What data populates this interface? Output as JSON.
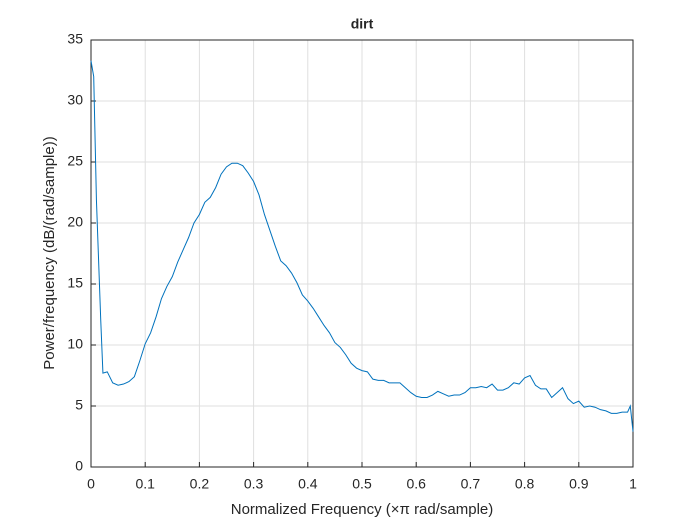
{
  "chart_data": {
    "type": "line",
    "title": "dirt",
    "x_label": "Normalized Frequency  (×π rad/sample)",
    "y_label": "Power/frequency (dB/(rad/sample))",
    "x": [
      0,
      0.005,
      0.01,
      0.018,
      0.022,
      0.03,
      0.04,
      0.05,
      0.06,
      0.07,
      0.08,
      0.09,
      0.1,
      0.11,
      0.12,
      0.13,
      0.14,
      0.15,
      0.16,
      0.17,
      0.18,
      0.19,
      0.2,
      0.21,
      0.22,
      0.23,
      0.24,
      0.25,
      0.26,
      0.27,
      0.28,
      0.29,
      0.3,
      0.31,
      0.32,
      0.33,
      0.34,
      0.35,
      0.36,
      0.37,
      0.38,
      0.39,
      0.4,
      0.41,
      0.42,
      0.43,
      0.44,
      0.45,
      0.46,
      0.47,
      0.48,
      0.49,
      0.5,
      0.51,
      0.52,
      0.53,
      0.54,
      0.55,
      0.56,
      0.57,
      0.58,
      0.59,
      0.6,
      0.61,
      0.62,
      0.63,
      0.64,
      0.65,
      0.66,
      0.67,
      0.68,
      0.69,
      0.7,
      0.71,
      0.72,
      0.73,
      0.74,
      0.75,
      0.76,
      0.77,
      0.78,
      0.79,
      0.8,
      0.81,
      0.82,
      0.83,
      0.84,
      0.85,
      0.86,
      0.87,
      0.88,
      0.89,
      0.9,
      0.91,
      0.92,
      0.93,
      0.94,
      0.95,
      0.96,
      0.97,
      0.98,
      0.99,
      0.995,
      1
    ],
    "values": [
      33.3,
      32,
      21.9,
      12,
      7.7,
      7.8,
      6.9,
      6.7,
      6.8,
      7.0,
      7.4,
      8.7,
      10.1,
      11,
      12.3,
      13.8,
      14.8,
      15.6,
      16.8,
      17.8,
      18.8,
      20,
      20.7,
      21.7,
      22.1,
      22.9,
      24,
      24.6,
      24.9,
      24.9,
      24.7,
      24.1,
      23.4,
      22.3,
      20.7,
      19.4,
      18.1,
      16.9,
      16.5,
      15.9,
      15.1,
      14.1,
      13.6,
      13,
      12.3,
      11.6,
      11,
      10.2,
      9.8,
      9.2,
      8.5,
      8.1,
      7.9,
      7.8,
      7.2,
      7.1,
      7.1,
      6.9,
      6.9,
      6.9,
      6.5,
      6.1,
      5.8,
      5.7,
      5.7,
      5.9,
      6.2,
      6.0,
      5.8,
      5.9,
      5.9,
      6.1,
      6.5,
      6.5,
      6.6,
      6.5,
      6.8,
      6.3,
      6.3,
      6.5,
      6.9,
      6.8,
      7.3,
      7.5,
      6.7,
      6.4,
      6.4,
      5.7,
      6.1,
      6.5,
      5.6,
      5.2,
      5.4,
      4.9,
      5.0,
      4.9,
      4.7,
      4.6,
      4.4,
      4.4,
      4.5,
      4.5,
      5.0,
      2.9
    ],
    "color": "#0072bd",
    "xlim": [
      0,
      1
    ],
    "xticks": [
      0,
      0.1,
      0.2,
      0.3,
      0.4,
      0.5,
      0.6,
      0.7,
      0.8,
      0.9,
      1
    ],
    "ylim": [
      0,
      35
    ],
    "yticks": [
      0,
      5,
      10,
      15,
      20,
      25,
      30,
      35
    ],
    "grid": true
  }
}
